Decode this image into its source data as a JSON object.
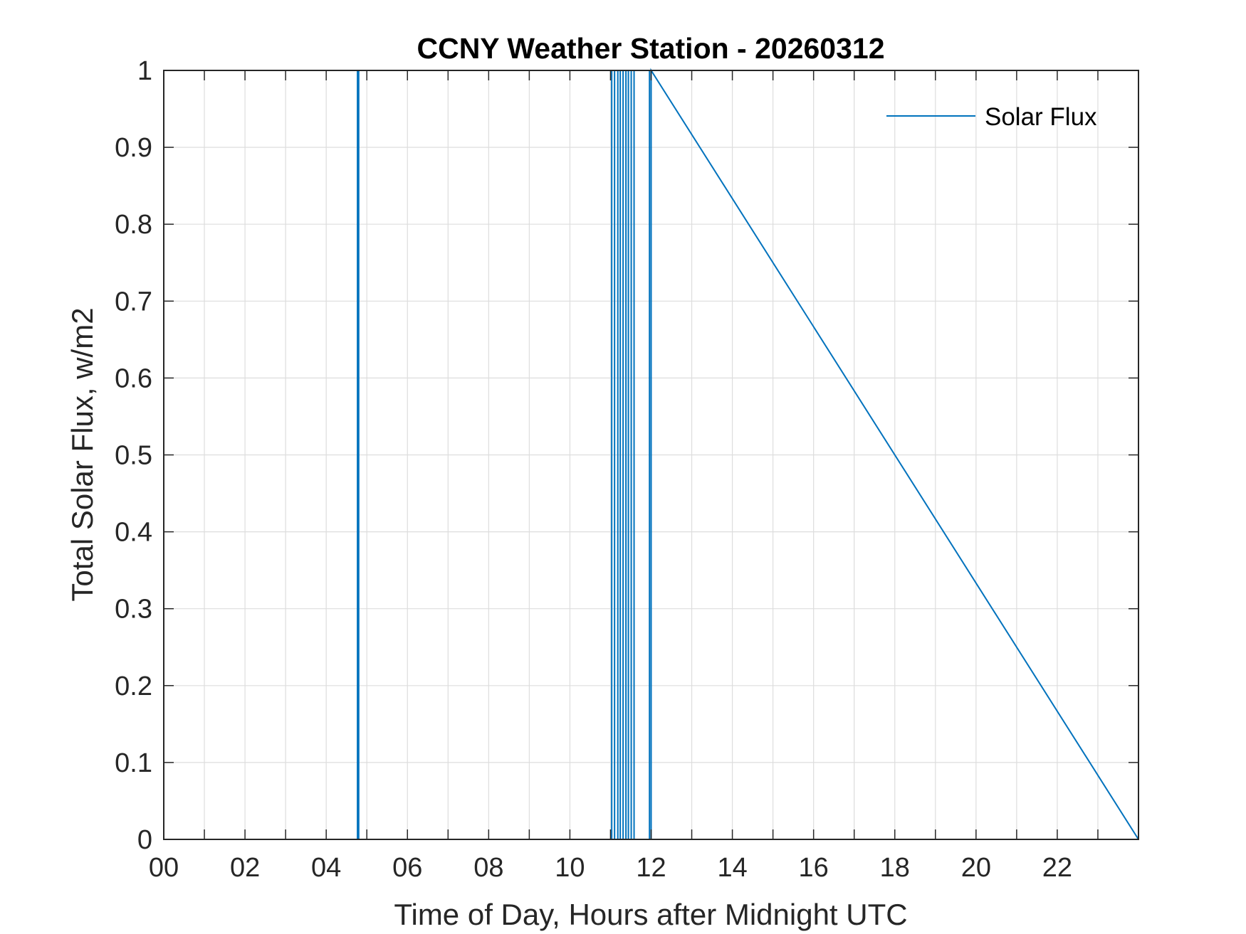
{
  "chart_data": {
    "type": "line",
    "title": "CCNY Weather Station - 20260312",
    "xlabel": "Time of Day, Hours after Midnight UTC",
    "ylabel": "Total Solar Flux, w/m2",
    "xlim": [
      0,
      24
    ],
    "ylim": [
      0,
      1
    ],
    "x_ticks": [
      0,
      2,
      4,
      6,
      8,
      10,
      12,
      14,
      16,
      18,
      20,
      22
    ],
    "x_tick_labels": [
      "00",
      "02",
      "04",
      "06",
      "08",
      "10",
      "12",
      "14",
      "16",
      "18",
      "20",
      "22"
    ],
    "x_minor_grid_step": 1,
    "y_ticks": [
      0,
      0.1,
      0.2,
      0.3,
      0.4,
      0.5,
      0.6,
      0.7,
      0.8,
      0.9,
      1
    ],
    "y_tick_labels": [
      "0",
      "0.1",
      "0.2",
      "0.3",
      "0.4",
      "0.5",
      "0.6",
      "0.7",
      "0.8",
      "0.9",
      "1"
    ],
    "grid": true,
    "legend": "top-right",
    "series": [
      {
        "name": "Solar Flux",
        "color": "#0072BD",
        "x": [
          0,
          4.77,
          4.77,
          4.8,
          4.8,
          11.03,
          11.03,
          11.1,
          11.1,
          11.18,
          11.18,
          11.24,
          11.24,
          11.31,
          11.31,
          11.38,
          11.38,
          11.44,
          11.44,
          11.51,
          11.51,
          11.58,
          11.58,
          11.96,
          11.96,
          12.0,
          12.0,
          24
        ],
        "y": [
          0,
          0,
          1,
          1,
          0,
          0,
          1,
          1,
          0,
          0,
          1,
          1,
          0,
          0,
          1,
          1,
          0,
          0,
          1,
          1,
          0,
          0,
          1,
          1,
          0,
          0,
          1,
          0
        ]
      }
    ]
  }
}
